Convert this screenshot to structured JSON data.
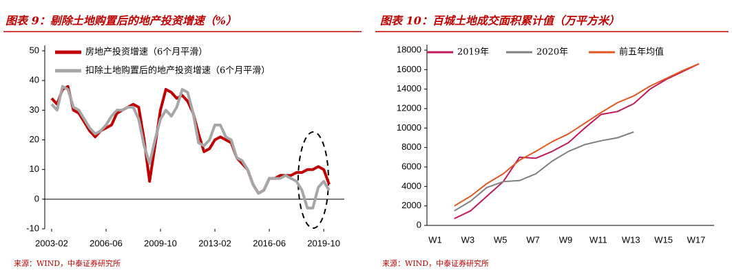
{
  "chart_data": [
    {
      "type": "line",
      "title": "图表 9：剔除土地购置后的地产投资增速（%）",
      "source": "来源：WIND，中泰证券研究所",
      "x": [
        "2003-02",
        "2003-06",
        "2003-10",
        "2004-02",
        "2004-06",
        "2004-10",
        "2005-02",
        "2005-06",
        "2005-10",
        "2006-02",
        "2006-06",
        "2006-10",
        "2007-02",
        "2007-06",
        "2007-10",
        "2008-02",
        "2008-06",
        "2008-10",
        "2009-02",
        "2009-06",
        "2009-10",
        "2010-02",
        "2010-06",
        "2010-10",
        "2011-02",
        "2011-06",
        "2011-10",
        "2012-02",
        "2012-06",
        "2012-10",
        "2013-02",
        "2013-06",
        "2013-10",
        "2014-02",
        "2014-06",
        "2014-10",
        "2015-02",
        "2015-06",
        "2015-10",
        "2016-02",
        "2016-06",
        "2016-10",
        "2017-02",
        "2017-06",
        "2017-10",
        "2018-02",
        "2018-06",
        "2018-10",
        "2019-02",
        "2019-06",
        "2019-10",
        "2020-02"
      ],
      "xticks": [
        "2003-02",
        "2006-06",
        "2009-10",
        "2013-02",
        "2016-06",
        "2019-10"
      ],
      "ylim": [
        -10,
        50
      ],
      "yticks": [
        -10,
        0,
        10,
        20,
        30,
        40,
        50
      ],
      "series": [
        {
          "name": "房地产投资增速（6个月平滑）",
          "color": "#c00000",
          "values": [
            34,
            32,
            37,
            38,
            30,
            29,
            26,
            23,
            21,
            23,
            24,
            25,
            29,
            30,
            31,
            32,
            31,
            20,
            6,
            18,
            30,
            37,
            36,
            34,
            35,
            33,
            29,
            22,
            16,
            17,
            20,
            21,
            20,
            19,
            14,
            12,
            10,
            5,
            2,
            3,
            7,
            7,
            8,
            8,
            8,
            9,
            9,
            10,
            10,
            11,
            10,
            5
          ]
        },
        {
          "name": "扣除土地购置后的地产投资增速（6个月平滑）",
          "color": "#a6a6a6",
          "values": [
            32,
            30,
            38,
            37,
            31,
            30,
            27,
            24,
            22,
            23,
            25,
            28,
            30,
            30,
            31,
            31,
            27,
            18,
            12,
            20,
            27,
            30,
            28,
            31,
            37,
            36,
            29,
            19,
            18,
            20,
            25,
            25,
            21,
            20,
            14,
            13,
            10,
            5,
            2,
            3,
            7,
            7,
            7,
            8,
            7,
            6,
            3,
            -3,
            -3,
            4,
            6,
            3
          ]
        }
      ]
    },
    {
      "type": "line",
      "title": "图表 10：百城土地成交面积累计值（万平方米）",
      "source": "来源：WIND，中泰证券研究所",
      "categories": [
        "W1",
        null,
        "W3",
        null,
        "W5",
        null,
        "W7",
        null,
        "W9",
        null,
        "W11",
        null,
        "W13",
        null,
        "W15",
        null,
        "W17"
      ],
      "ylim": [
        0,
        18000
      ],
      "yticks": [
        0,
        2000,
        4000,
        6000,
        8000,
        10000,
        12000,
        14000,
        16000,
        18000
      ],
      "series": [
        {
          "name": "2019年",
          "color": "#c0185a",
          "values": [
            null,
            700,
            1500,
            3000,
            4500,
            7000,
            6900,
            7600,
            8500,
            10000,
            11400,
            11700,
            12500,
            14000,
            15000,
            15800,
            16600
          ]
        },
        {
          "name": "2020年",
          "color": "#7f7f7f",
          "values": [
            null,
            1500,
            2500,
            3900,
            4500,
            4600,
            5300,
            6600,
            7600,
            8300,
            8700,
            9000,
            9600,
            null,
            null,
            null,
            null
          ]
        },
        {
          "name": "前五年均值",
          "color": "#e0561c",
          "values": [
            null,
            2000,
            3000,
            4300,
            5300,
            6700,
            7600,
            8600,
            9400,
            10500,
            11600,
            12600,
            13300,
            14300,
            15100,
            15900,
            16600
          ]
        }
      ]
    }
  ]
}
